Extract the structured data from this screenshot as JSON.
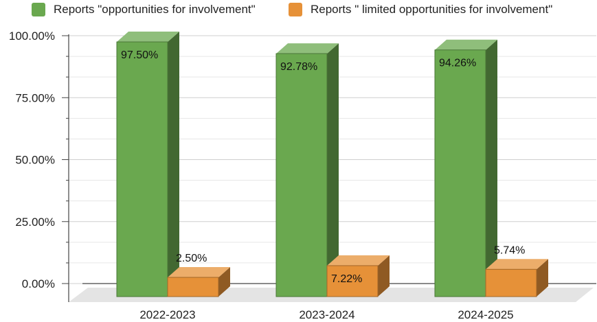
{
  "chart_data": {
    "type": "bar",
    "title": "",
    "xlabel": "",
    "ylabel": "",
    "categories": [
      "2022-2023",
      "2023-2024",
      "2024-2025"
    ],
    "series": [
      {
        "name": "Reports \"opportunities for involvement\"",
        "color": "#6aa84f",
        "values": [
          97.5,
          92.78,
          94.26
        ],
        "labels": [
          "97.50%",
          "92.78%",
          "94.26%"
        ]
      },
      {
        "name": "Reports \" limited opportunities for involvement\"",
        "color": "#e69138",
        "values": [
          2.5,
          7.22,
          5.74
        ],
        "labels": [
          "2.50%",
          "7.22%",
          "5.74%"
        ]
      }
    ],
    "ylim": [
      0,
      100
    ],
    "yticks": [
      0,
      25,
      50,
      75,
      100
    ],
    "ytick_labels": [
      "0.00%",
      "25.00%",
      "50.00%",
      "75.00%",
      "100.00%"
    ],
    "grid": true,
    "legend_position": "top",
    "style": "3d"
  }
}
